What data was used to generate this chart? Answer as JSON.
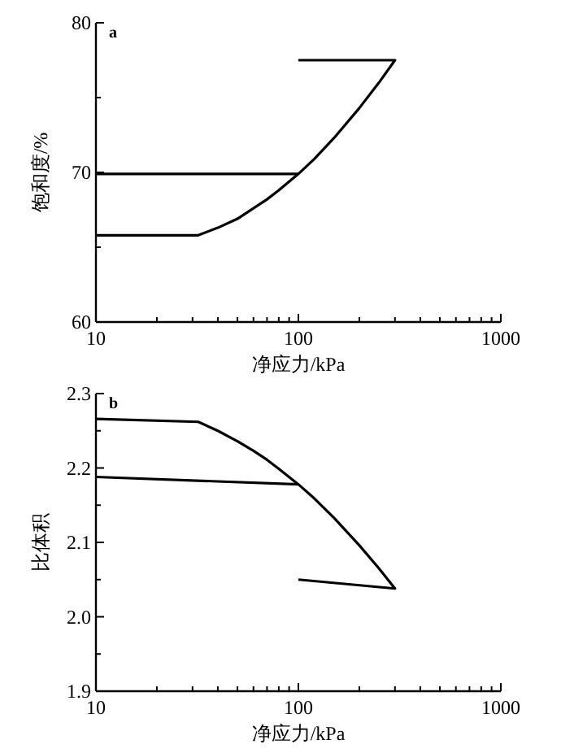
{
  "chart_data": [
    {
      "type": "line",
      "xlabel": "净应力/kPa",
      "ylabel": "饱和度/%",
      "annotations": [
        "a"
      ],
      "log": "x",
      "xlim": [
        10,
        1000
      ],
      "xticks": [
        10,
        100,
        1000
      ],
      "ylim": [
        60,
        80
      ],
      "yticks": [
        60,
        70,
        80
      ],
      "grid": false,
      "marker": "none",
      "line_style": "solid",
      "series": [
        {
          "color": "#000000",
          "x": [
            10,
            32,
            40,
            50,
            60,
            70,
            80,
            100,
            120,
            150,
            200,
            250,
            300,
            100
          ],
          "values": [
            65.8,
            65.8,
            66.3,
            66.9,
            67.6,
            68.2,
            68.8,
            69.9,
            70.9,
            72.3,
            74.3,
            76.0,
            77.5,
            77.5
          ]
        },
        {
          "color": "#000000",
          "x": [
            10,
            100
          ],
          "values": [
            69.9,
            69.9
          ]
        }
      ]
    },
    {
      "type": "line",
      "xlabel": "净应力/kPa",
      "ylabel": "比体积",
      "annotations": [
        "b"
      ],
      "log": "x",
      "xlim": [
        10,
        1000
      ],
      "xticks": [
        10,
        100,
        1000
      ],
      "ylim": [
        1.9,
        2.3
      ],
      "yticks": [
        1.9,
        {
          "value": 2,
          "label": "2.0"
        },
        2.1,
        2.2,
        2.3
      ],
      "grid": false,
      "marker": "none",
      "line_style": "solid",
      "series": [
        {
          "color": "#000000",
          "x": [
            10,
            32,
            40,
            50,
            60,
            70,
            80,
            100,
            120,
            150,
            200,
            250,
            300,
            100
          ],
          "values": [
            2.266,
            2.262,
            2.25,
            2.236,
            2.223,
            2.211,
            2.199,
            2.178,
            2.159,
            2.133,
            2.096,
            2.065,
            2.038,
            2.05
          ]
        },
        {
          "color": "#000000",
          "x": [
            10,
            100
          ],
          "values": [
            2.188,
            2.178
          ]
        }
      ]
    }
  ]
}
